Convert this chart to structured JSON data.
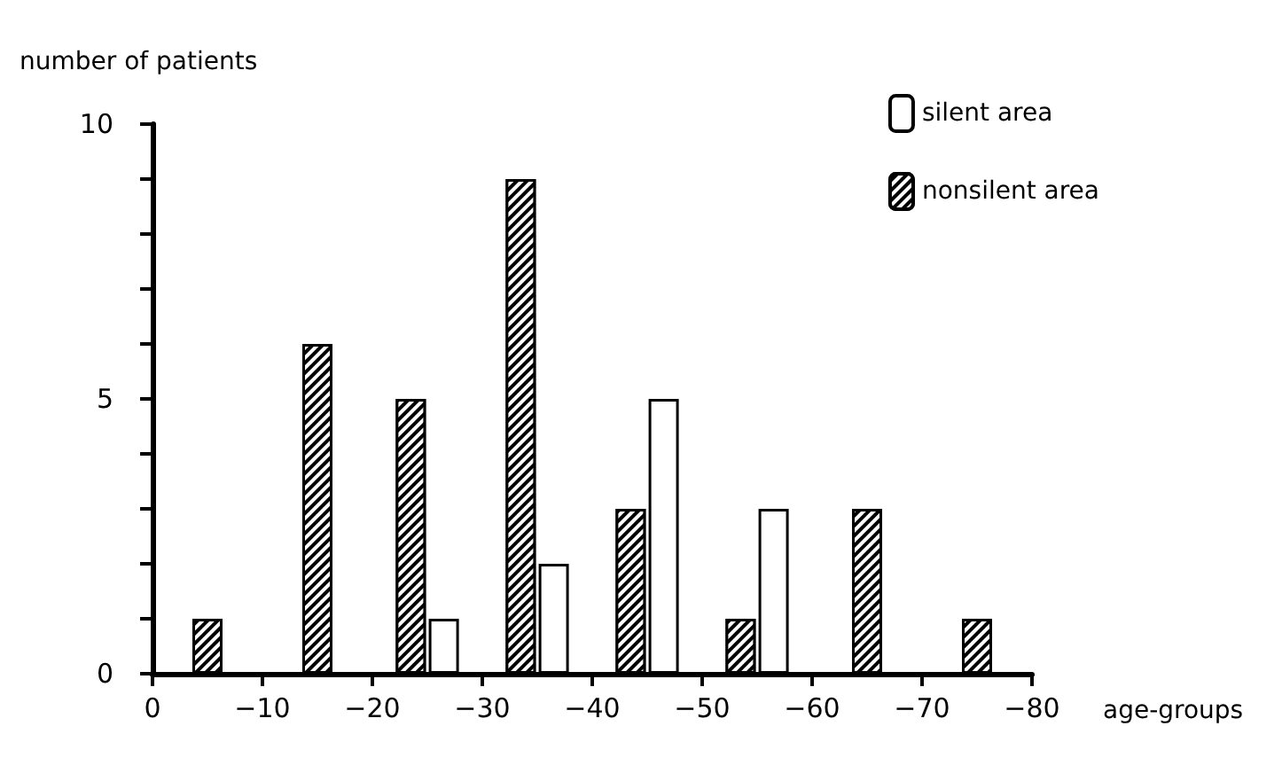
{
  "chart_data": {
    "type": "bar",
    "ylabel": "number of patients",
    "xlabel": "age-groups",
    "xlim": [
      0,
      -80
    ],
    "xticks": [
      0,
      -10,
      -20,
      -30,
      -40,
      -50,
      -60,
      -70,
      -80
    ],
    "ylim": [
      0,
      10
    ],
    "yticks": [
      0,
      {
        "value": 1,
        "label": null
      },
      {
        "value": 2,
        "label": null
      },
      {
        "value": 3,
        "label": null
      },
      {
        "value": 4,
        "label": null
      },
      5,
      {
        "value": 6,
        "label": null
      },
      {
        "value": 7,
        "label": null
      },
      {
        "value": 8,
        "label": null
      },
      {
        "value": 9,
        "label": null
      },
      10
    ],
    "series": [
      {
        "name": "silent area",
        "color": "#ffffff",
        "x": [
          -26.5,
          -36.5,
          -46.5,
          -56.5
        ],
        "values": [
          1,
          2,
          5,
          3
        ]
      },
      {
        "name": "nonsilent area",
        "color": "#000000",
        "x": [
          -5,
          -15,
          -23.5,
          -33.5,
          -43.5,
          -53.5,
          -65,
          -75
        ],
        "values": [
          1,
          6,
          5,
          9,
          3,
          1,
          3,
          1
        ]
      }
    ],
    "legend": "top right",
    "grid": false
  }
}
